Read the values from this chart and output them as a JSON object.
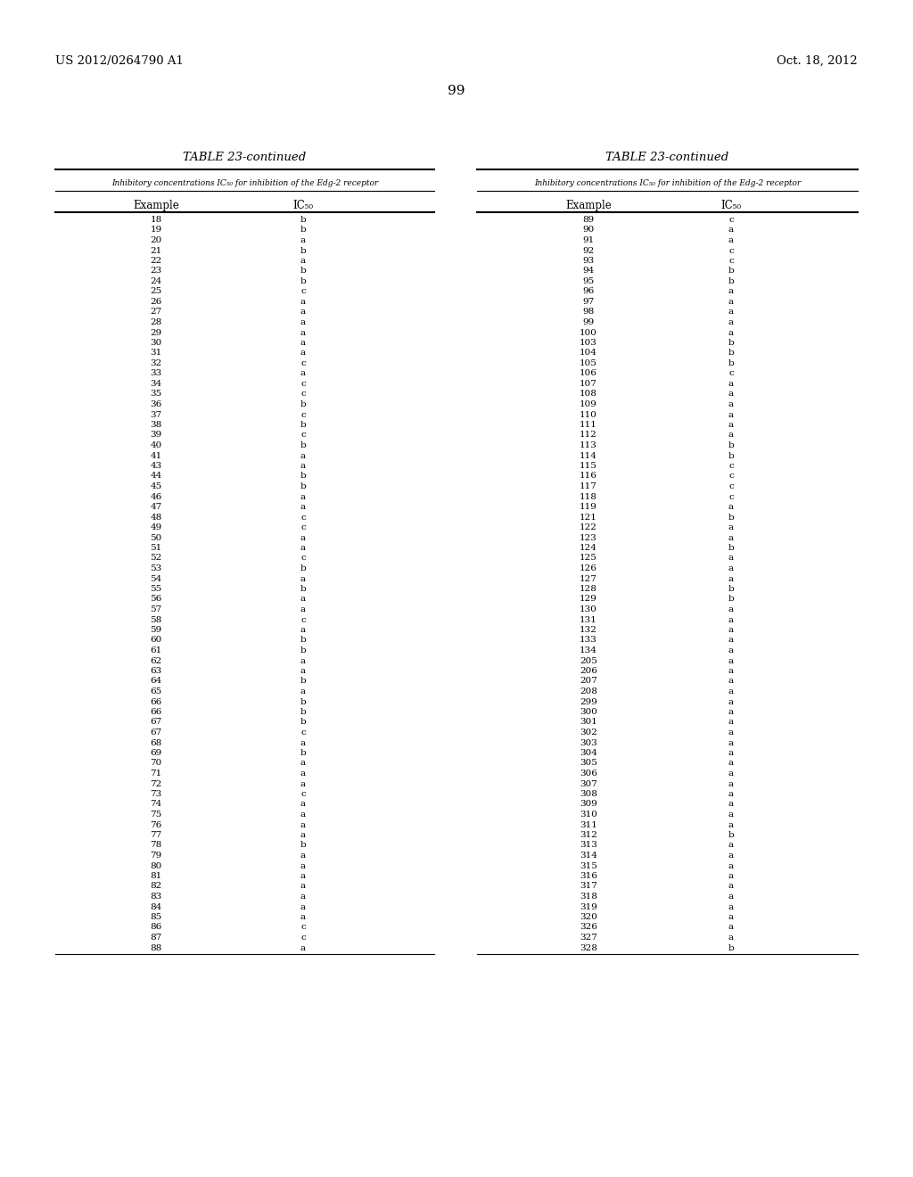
{
  "patent_number": "US 2012/0264790 A1",
  "date": "Oct. 18, 2012",
  "page_number": "99",
  "table_title": "TABLE 23-continued",
  "subtitle": "Inhibitory concentrations IC₅₀ for inhibition of the Edg-2 receptor",
  "col1_header": "Example",
  "col2_header": "IC₅₀",
  "left_data": [
    [
      "18",
      "b"
    ],
    [
      "19",
      "b"
    ],
    [
      "20",
      "a"
    ],
    [
      "21",
      "b"
    ],
    [
      "22",
      "a"
    ],
    [
      "23",
      "b"
    ],
    [
      "24",
      "b"
    ],
    [
      "25",
      "c"
    ],
    [
      "26",
      "a"
    ],
    [
      "27",
      "a"
    ],
    [
      "28",
      "a"
    ],
    [
      "29",
      "a"
    ],
    [
      "30",
      "a"
    ],
    [
      "31",
      "a"
    ],
    [
      "32",
      "c"
    ],
    [
      "33",
      "a"
    ],
    [
      "34",
      "c"
    ],
    [
      "35",
      "c"
    ],
    [
      "36",
      "b"
    ],
    [
      "37",
      "c"
    ],
    [
      "38",
      "b"
    ],
    [
      "39",
      "c"
    ],
    [
      "40",
      "b"
    ],
    [
      "41",
      "a"
    ],
    [
      "43",
      "a"
    ],
    [
      "44",
      "b"
    ],
    [
      "45",
      "b"
    ],
    [
      "46",
      "a"
    ],
    [
      "47",
      "a"
    ],
    [
      "48",
      "c"
    ],
    [
      "49",
      "c"
    ],
    [
      "50",
      "a"
    ],
    [
      "51",
      "a"
    ],
    [
      "52",
      "c"
    ],
    [
      "53",
      "b"
    ],
    [
      "54",
      "a"
    ],
    [
      "55",
      "b"
    ],
    [
      "56",
      "a"
    ],
    [
      "57",
      "a"
    ],
    [
      "58",
      "c"
    ],
    [
      "59",
      "a"
    ],
    [
      "60",
      "b"
    ],
    [
      "61",
      "b"
    ],
    [
      "62",
      "a"
    ],
    [
      "63",
      "a"
    ],
    [
      "64",
      "b"
    ],
    [
      "65",
      "a"
    ],
    [
      "66",
      "b"
    ],
    [
      "66",
      "b"
    ],
    [
      "67",
      "b"
    ],
    [
      "67",
      "c"
    ],
    [
      "68",
      "a"
    ],
    [
      "69",
      "b"
    ],
    [
      "70",
      "a"
    ],
    [
      "71",
      "a"
    ],
    [
      "72",
      "a"
    ],
    [
      "73",
      "c"
    ],
    [
      "74",
      "a"
    ],
    [
      "75",
      "a"
    ],
    [
      "76",
      "a"
    ],
    [
      "77",
      "a"
    ],
    [
      "78",
      "b"
    ],
    [
      "79",
      "a"
    ],
    [
      "80",
      "a"
    ],
    [
      "81",
      "a"
    ],
    [
      "82",
      "a"
    ],
    [
      "83",
      "a"
    ],
    [
      "84",
      "a"
    ],
    [
      "85",
      "a"
    ],
    [
      "86",
      "c"
    ],
    [
      "87",
      "c"
    ],
    [
      "88",
      "a"
    ]
  ],
  "right_data": [
    [
      "89",
      "c"
    ],
    [
      "90",
      "a"
    ],
    [
      "91",
      "a"
    ],
    [
      "92",
      "c"
    ],
    [
      "93",
      "c"
    ],
    [
      "94",
      "b"
    ],
    [
      "95",
      "b"
    ],
    [
      "96",
      "a"
    ],
    [
      "97",
      "a"
    ],
    [
      "98",
      "a"
    ],
    [
      "99",
      "a"
    ],
    [
      "100",
      "a"
    ],
    [
      "103",
      "b"
    ],
    [
      "104",
      "b"
    ],
    [
      "105",
      "b"
    ],
    [
      "106",
      "c"
    ],
    [
      "107",
      "a"
    ],
    [
      "108",
      "a"
    ],
    [
      "109",
      "a"
    ],
    [
      "110",
      "a"
    ],
    [
      "111",
      "a"
    ],
    [
      "112",
      "a"
    ],
    [
      "113",
      "b"
    ],
    [
      "114",
      "b"
    ],
    [
      "115",
      "c"
    ],
    [
      "116",
      "c"
    ],
    [
      "117",
      "c"
    ],
    [
      "118",
      "c"
    ],
    [
      "119",
      "a"
    ],
    [
      "121",
      "b"
    ],
    [
      "122",
      "a"
    ],
    [
      "123",
      "a"
    ],
    [
      "124",
      "b"
    ],
    [
      "125",
      "a"
    ],
    [
      "126",
      "a"
    ],
    [
      "127",
      "a"
    ],
    [
      "128",
      "b"
    ],
    [
      "129",
      "b"
    ],
    [
      "130",
      "a"
    ],
    [
      "131",
      "a"
    ],
    [
      "132",
      "a"
    ],
    [
      "133",
      "a"
    ],
    [
      "134",
      "a"
    ],
    [
      "205",
      "a"
    ],
    [
      "206",
      "a"
    ],
    [
      "207",
      "a"
    ],
    [
      "208",
      "a"
    ],
    [
      "299",
      "a"
    ],
    [
      "300",
      "a"
    ],
    [
      "301",
      "a"
    ],
    [
      "302",
      "a"
    ],
    [
      "303",
      "a"
    ],
    [
      "304",
      "a"
    ],
    [
      "305",
      "a"
    ],
    [
      "306",
      "a"
    ],
    [
      "307",
      "a"
    ],
    [
      "308",
      "a"
    ],
    [
      "309",
      "a"
    ],
    [
      "310",
      "a"
    ],
    [
      "311",
      "a"
    ],
    [
      "312",
      "b"
    ],
    [
      "313",
      "a"
    ],
    [
      "314",
      "a"
    ],
    [
      "315",
      "a"
    ],
    [
      "316",
      "a"
    ],
    [
      "317",
      "a"
    ],
    [
      "318",
      "a"
    ],
    [
      "319",
      "a"
    ],
    [
      "320",
      "a"
    ],
    [
      "326",
      "a"
    ],
    [
      "327",
      "a"
    ],
    [
      "328",
      "b"
    ]
  ],
  "background_color": "#ffffff",
  "text_color": "#000000",
  "font_size_data": 7.5,
  "font_size_header": 8.5,
  "font_size_patent": 9.5,
  "font_size_page": 11.0,
  "font_size_table_title": 9.5,
  "font_size_subtitle": 6.5,
  "dpi": 100,
  "fig_w": 10.24,
  "fig_h": 13.2
}
